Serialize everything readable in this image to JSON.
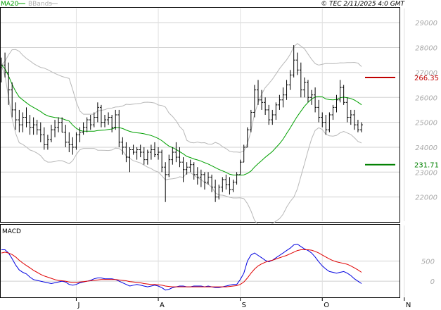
{
  "header": {
    "legend": [
      {
        "label": "MA20",
        "color": "#00a000"
      },
      {
        "label": "BBands",
        "color": "#b0b0b0"
      }
    ],
    "copyright": "© TEC 2/11/2025 4:0 GMT"
  },
  "macd_panel": {
    "label": "MACD"
  },
  "chart_data": [
    {
      "type": "ohlc",
      "name": "price",
      "ylim": [
        21000,
        29600
      ],
      "yticks": [
        22000,
        23000,
        24000,
        25000,
        26000,
        27000,
        28000,
        29000
      ],
      "grid": true,
      "xlabels": [
        "J",
        "A",
        "S",
        "O",
        "N"
      ],
      "xlabel_index": [
        21,
        44,
        67,
        90,
        113
      ],
      "levels": [
        {
          "label": "266.35",
          "value": 26800,
          "color": "#c00000"
        },
        {
          "label": "231.71",
          "value": 23300,
          "color": "#008000"
        }
      ],
      "bars": [
        [
          27200,
          27600,
          26600,
          27300
        ],
        [
          27300,
          27800,
          26800,
          27000
        ],
        [
          27000,
          27400,
          25700,
          26300
        ],
        [
          26300,
          26600,
          25200,
          25500
        ],
        [
          25500,
          25800,
          24700,
          25100
        ],
        [
          25100,
          25500,
          24600,
          24900
        ],
        [
          24900,
          25400,
          24600,
          25200
        ],
        [
          25200,
          25600,
          24800,
          25000
        ],
        [
          25000,
          25300,
          24500,
          24800
        ],
        [
          24800,
          25200,
          24500,
          24900
        ],
        [
          24900,
          25100,
          24500,
          24700
        ],
        [
          24700,
          25000,
          24200,
          24500
        ],
        [
          24500,
          24800,
          23900,
          24100
        ],
        [
          24100,
          24500,
          23900,
          24300
        ],
        [
          24300,
          24900,
          24200,
          24700
        ],
        [
          24700,
          25100,
          24400,
          24800
        ],
        [
          24800,
          25200,
          24600,
          25000
        ],
        [
          25000,
          25200,
          24600,
          24600
        ],
        [
          24600,
          24900,
          24000,
          24200
        ],
        [
          24200,
          24600,
          23800,
          24100
        ],
        [
          24100,
          24400,
          23700,
          24000
        ],
        [
          24000,
          24600,
          23900,
          24500
        ],
        [
          24500,
          24800,
          24200,
          24600
        ],
        [
          24600,
          25000,
          24500,
          24800
        ],
        [
          24800,
          25200,
          24600,
          25100
        ],
        [
          25100,
          25300,
          24700,
          24900
        ],
        [
          24900,
          25400,
          24800,
          25200
        ],
        [
          25200,
          25800,
          25000,
          25600
        ],
        [
          25600,
          25700,
          24800,
          25000
        ],
        [
          25000,
          25300,
          24800,
          25100
        ],
        [
          25100,
          25400,
          24900,
          25200
        ],
        [
          25200,
          25300,
          24600,
          24800
        ],
        [
          24800,
          25500,
          24700,
          25300
        ],
        [
          25300,
          25500,
          24000,
          24200
        ],
        [
          24200,
          24400,
          23700,
          24000
        ],
        [
          24000,
          24200,
          23400,
          23600
        ],
        [
          23600,
          24000,
          23000,
          23900
        ],
        [
          23900,
          24100,
          23700,
          23800
        ],
        [
          23800,
          24000,
          23500,
          23900
        ],
        [
          23900,
          24100,
          23600,
          23800
        ],
        [
          23800,
          24000,
          23300,
          23500
        ],
        [
          23500,
          23900,
          23300,
          23800
        ],
        [
          23800,
          24100,
          23500,
          23900
        ],
        [
          23900,
          24200,
          23600,
          23700
        ],
        [
          23700,
          24000,
          23500,
          23800
        ],
        [
          23800,
          23900,
          23000,
          23200
        ],
        [
          23200,
          23400,
          21800,
          22900
        ],
        [
          22900,
          23700,
          22800,
          23500
        ],
        [
          23500,
          24000,
          23300,
          23800
        ],
        [
          23800,
          24200,
          23400,
          23600
        ],
        [
          23600,
          24000,
          23200,
          23400
        ],
        [
          23400,
          23600,
          22600,
          23100
        ],
        [
          23100,
          23400,
          22900,
          23200
        ],
        [
          23200,
          23500,
          23000,
          23300
        ],
        [
          23300,
          23400,
          22700,
          22900
        ],
        [
          22900,
          23200,
          22500,
          22800
        ],
        [
          22800,
          23100,
          22400,
          22900
        ],
        [
          22900,
          23000,
          22300,
          22600
        ],
        [
          22600,
          23000,
          22500,
          22800
        ],
        [
          22800,
          22900,
          22200,
          22400
        ],
        [
          22400,
          22700,
          21800,
          22000
        ],
        [
          22000,
          22500,
          21900,
          22400
        ],
        [
          22400,
          22800,
          22200,
          22700
        ],
        [
          22700,
          22900,
          22300,
          22500
        ],
        [
          22500,
          22800,
          22100,
          22300
        ],
        [
          22300,
          22700,
          22200,
          22600
        ],
        [
          22600,
          23000,
          22500,
          22900
        ],
        [
          22900,
          23500,
          22900,
          23400
        ],
        [
          23400,
          24100,
          23400,
          24000
        ],
        [
          24000,
          24800,
          24000,
          24700
        ],
        [
          24700,
          25500,
          24600,
          25400
        ],
        [
          25400,
          26500,
          25200,
          26300
        ],
        [
          26300,
          26700,
          25700,
          25900
        ],
        [
          25900,
          26300,
          25500,
          25800
        ],
        [
          25800,
          26000,
          25300,
          25500
        ],
        [
          25500,
          25700,
          24900,
          25100
        ],
        [
          25100,
          25500,
          24900,
          25300
        ],
        [
          25300,
          25800,
          25100,
          25700
        ],
        [
          25700,
          26100,
          25500,
          25900
        ],
        [
          25900,
          26400,
          25600,
          26100
        ],
        [
          26100,
          26700,
          25900,
          26500
        ],
        [
          26500,
          27100,
          26300,
          26900
        ],
        [
          26900,
          28100,
          26800,
          27500
        ],
        [
          27500,
          27800,
          26900,
          27100
        ],
        [
          27100,
          27400,
          26000,
          26300
        ],
        [
          26300,
          26800,
          26000,
          26600
        ],
        [
          26600,
          26700,
          25800,
          26000
        ],
        [
          26000,
          26300,
          25700,
          26100
        ],
        [
          26100,
          26400,
          25400,
          25600
        ],
        [
          25600,
          25900,
          25000,
          25200
        ],
        [
          25200,
          25400,
          24800,
          25000
        ],
        [
          25000,
          25300,
          24500,
          24700
        ],
        [
          24700,
          25400,
          24600,
          25300
        ],
        [
          25300,
          25700,
          25100,
          25600
        ],
        [
          25600,
          26100,
          25400,
          25900
        ],
        [
          25900,
          26700,
          25800,
          26400
        ],
        [
          26400,
          26500,
          25700,
          25800
        ],
        [
          25800,
          26000,
          25000,
          25200
        ],
        [
          25200,
          25500,
          24900,
          25300
        ],
        [
          25300,
          25500,
          24700,
          24900
        ],
        [
          24900,
          25100,
          24600,
          24700
        ],
        [
          24700,
          25000,
          24600,
          24900
        ]
      ]
    },
    {
      "type": "line",
      "name": "macd",
      "ylim": [
        -400,
        1400
      ],
      "yticks": [
        0,
        500
      ],
      "series": [
        {
          "color": "#0000e0",
          "values": [
            780,
            780,
            700,
            560,
            400,
            280,
            220,
            180,
            100,
            40,
            20,
            0,
            -20,
            -40,
            -60,
            -40,
            -20,
            0,
            -20,
            -80,
            -100,
            -80,
            -40,
            -20,
            0,
            20,
            60,
            80,
            80,
            60,
            60,
            60,
            40,
            0,
            -40,
            -80,
            -120,
            -100,
            -80,
            -100,
            -120,
            -140,
            -120,
            -100,
            -120,
            -160,
            -220,
            -200,
            -160,
            -140,
            -120,
            -120,
            -140,
            -140,
            -120,
            -120,
            -120,
            -140,
            -120,
            -140,
            -160,
            -160,
            -140,
            -120,
            -100,
            -80,
            -80,
            40,
            200,
            500,
            650,
            700,
            640,
            580,
            520,
            480,
            520,
            580,
            640,
            700,
            760,
            820,
            900,
            920,
            860,
            800,
            760,
            700,
            600,
            480,
            380,
            300,
            240,
            220,
            200,
            220,
            240,
            200,
            140,
            60,
            0,
            -60
          ]
        },
        {
          "color": "#e00000",
          "values": [
            700,
            720,
            700,
            660,
            600,
            520,
            450,
            390,
            330,
            270,
            220,
            170,
            130,
            100,
            70,
            40,
            20,
            10,
            0,
            -20,
            -30,
            -30,
            -20,
            -10,
            0,
            10,
            20,
            30,
            40,
            40,
            40,
            40,
            40,
            30,
            20,
            10,
            -10,
            -20,
            -30,
            -40,
            -60,
            -70,
            -80,
            -80,
            -90,
            -100,
            -120,
            -130,
            -140,
            -140,
            -140,
            -140,
            -140,
            -140,
            -140,
            -140,
            -140,
            -140,
            -140,
            -140,
            -140,
            -140,
            -140,
            -140,
            -130,
            -120,
            -110,
            -80,
            -20,
            80,
            200,
            300,
            380,
            430,
            470,
            500,
            520,
            550,
            580,
            610,
            640,
            680,
            720,
            760,
            780,
            780,
            780,
            770,
            740,
            700,
            650,
            600,
            550,
            510,
            480,
            460,
            440,
            420,
            380,
            330,
            280,
            220
          ]
        }
      ]
    }
  ]
}
